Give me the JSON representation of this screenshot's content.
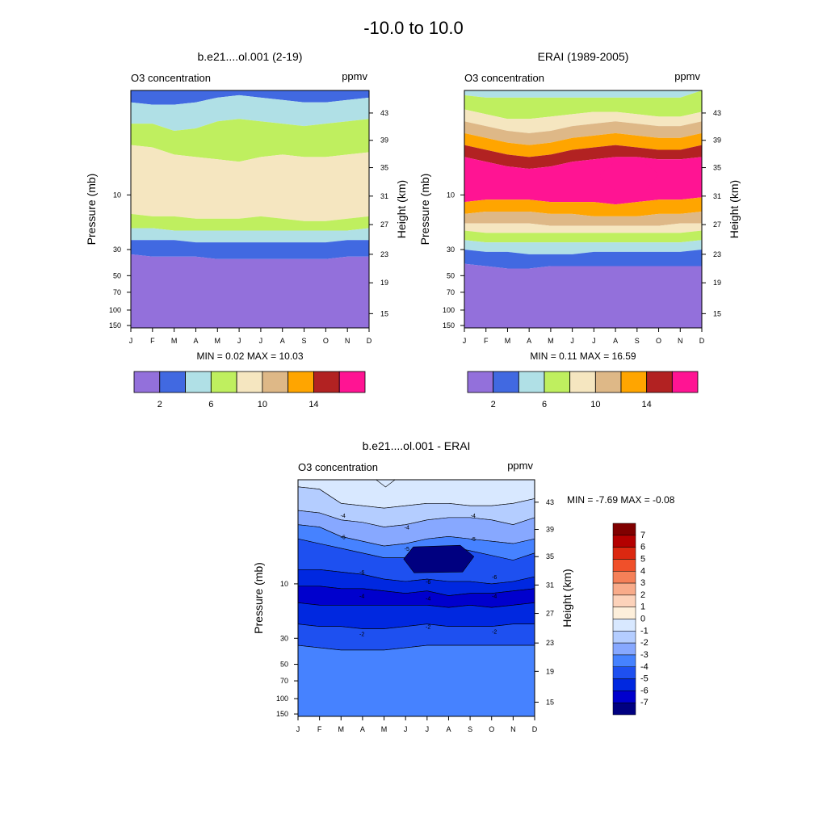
{
  "figure": {
    "title": "-10.0 to  10.0"
  },
  "chart_data": [
    {
      "type": "heatmap",
      "id": "model",
      "title": "b.e21....ol.001 (2-19)",
      "left_label": "O3 concentration",
      "right_label": "ppmv",
      "xlabel": "",
      "ylabel": "Pressure (mb)",
      "ylabel_right": "Height (km)",
      "months": [
        "J",
        "F",
        "M",
        "A",
        "M",
        "J",
        "J",
        "A",
        "S",
        "O",
        "N",
        "D"
      ],
      "pressure_ticks": [
        "10",
        "30",
        "50",
        "70",
        "100",
        "150"
      ],
      "height_ticks": [
        "43",
        "39",
        "35",
        "31",
        "27",
        "23",
        "19",
        "15"
      ],
      "min_max_text": "MIN =   0.02  MAX =  10.03",
      "min": 0.02,
      "max": 10.03,
      "bands_top_to_bottom": [
        {
          "range": "2-4",
          "color": "#4169E1"
        },
        {
          "range": "4-6",
          "color": "#B0E0E6"
        },
        {
          "range": "6-8",
          "color": "#BFEF5F"
        },
        {
          "range": "8-10",
          "color": "#F5E6C0"
        },
        {
          "range": "6-8",
          "color": "#BFEF5F"
        },
        {
          "range": "4-6",
          "color": "#B0E0E6"
        },
        {
          "range": "2-4",
          "color": "#4169E1"
        },
        {
          "range": "0-2",
          "color": "#9370DB"
        }
      ],
      "colorbar": {
        "colors": [
          "#9370DB",
          "#4169E1",
          "#B0E0E6",
          "#BFEF5F",
          "#F5E6C0",
          "#DEB887",
          "#FFA500",
          "#B22222",
          "#FF1493"
        ],
        "labels": [
          "2",
          "6",
          "10",
          "14"
        ]
      }
    },
    {
      "type": "heatmap",
      "id": "erai",
      "title": "ERAI (1989-2005)",
      "left_label": "O3 concentration",
      "right_label": "ppmv",
      "xlabel": "",
      "ylabel": "Pressure (mb)",
      "ylabel_right": "Height (km)",
      "months": [
        "J",
        "F",
        "M",
        "A",
        "M",
        "J",
        "J",
        "A",
        "S",
        "O",
        "N",
        "D"
      ],
      "pressure_ticks": [
        "10",
        "30",
        "50",
        "70",
        "100",
        "150"
      ],
      "height_ticks": [
        "43",
        "39",
        "35",
        "31",
        "27",
        "23",
        "19",
        "15"
      ],
      "min_max_text": "MIN =   0.11  MAX =  16.59",
      "min": 0.11,
      "max": 16.59,
      "bands_top_to_bottom": [
        {
          "range": "4-6",
          "color": "#B0E0E6"
        },
        {
          "range": "6-8",
          "color": "#BFEF5F"
        },
        {
          "range": "8-10",
          "color": "#F5E6C0"
        },
        {
          "range": "10-12",
          "color": "#DEB887"
        },
        {
          "range": "12-14",
          "color": "#FFA500"
        },
        {
          "range": "14-16",
          "color": "#B22222"
        },
        {
          "range": ">16",
          "color": "#FF1493"
        },
        {
          "range": "12-14",
          "color": "#FFA500"
        },
        {
          "range": "10-12",
          "color": "#DEB887"
        },
        {
          "range": "8-10",
          "color": "#F5E6C0"
        },
        {
          "range": "6-8",
          "color": "#BFEF5F"
        },
        {
          "range": "4-6",
          "color": "#B0E0E6"
        },
        {
          "range": "2-4",
          "color": "#4169E1"
        },
        {
          "range": "0-2",
          "color": "#9370DB"
        }
      ],
      "colorbar": {
        "colors": [
          "#9370DB",
          "#4169E1",
          "#B0E0E6",
          "#BFEF5F",
          "#F5E6C0",
          "#DEB887",
          "#FFA500",
          "#B22222",
          "#FF1493"
        ],
        "labels": [
          "2",
          "6",
          "10",
          "14"
        ]
      }
    },
    {
      "type": "heatmap",
      "id": "diff",
      "title": "b.e21....ol.001 - ERAI",
      "left_label": "O3 concentration",
      "right_label": "ppmv",
      "xlabel": "",
      "ylabel": "Pressure (mb)",
      "ylabel_right": "Height (km)",
      "months": [
        "J",
        "F",
        "M",
        "A",
        "M",
        "J",
        "J",
        "A",
        "S",
        "O",
        "N",
        "D"
      ],
      "pressure_ticks": [
        "10",
        "30",
        "50",
        "70",
        "100",
        "150"
      ],
      "height_ticks": [
        "43",
        "39",
        "35",
        "31",
        "27",
        "23",
        "19",
        "15"
      ],
      "min_max_text": "MIN =  -7.69  MAX =  -0.08",
      "min": -7.69,
      "max": -0.08,
      "contour_labels": [
        "-4",
        "-4",
        "-4",
        "-5",
        "-5",
        "-6",
        "-6",
        "-6",
        "-6",
        "-4",
        "-4",
        "-4",
        "-2",
        "-2",
        "-2"
      ],
      "colorbar": {
        "colors": [
          "#000080",
          "#0000CD",
          "#0028E0",
          "#1E50F0",
          "#4682FF",
          "#87A8FF",
          "#B4CDFF",
          "#D8E8FF",
          "#FDEFDB",
          "#FCD2BA",
          "#F8AB8A",
          "#F58058",
          "#F0502A",
          "#DC2810",
          "#B40000",
          "#800000"
        ],
        "labels": [
          "7",
          "6",
          "5",
          "4",
          "3",
          "2",
          "1",
          "0",
          "-1",
          "-2",
          "-3",
          "-4",
          "-5",
          "-6",
          "-7"
        ]
      }
    }
  ]
}
